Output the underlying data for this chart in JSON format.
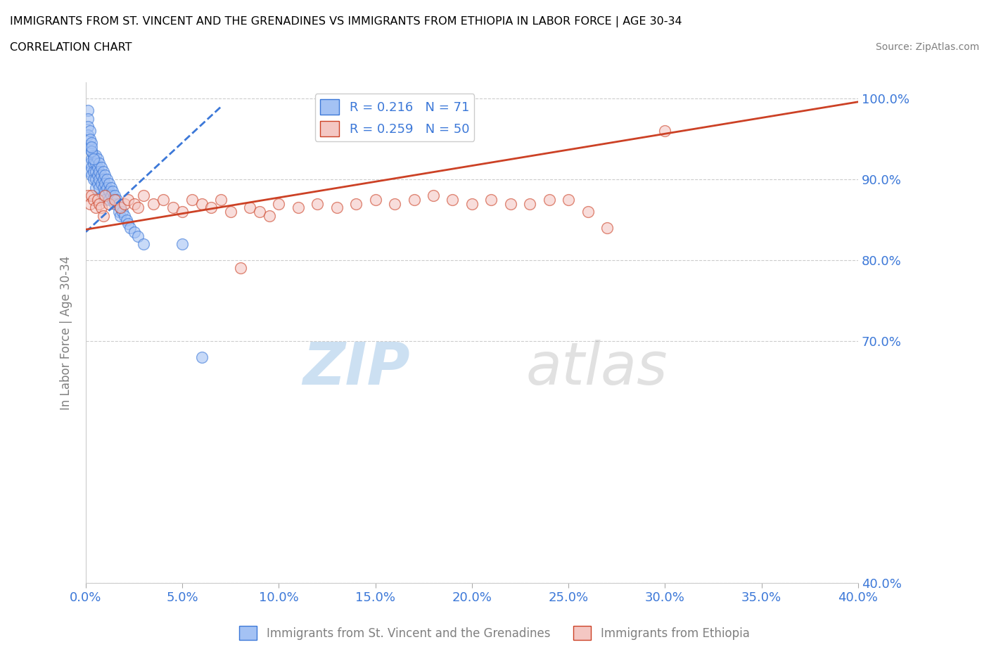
{
  "title": "IMMIGRANTS FROM ST. VINCENT AND THE GRENADINES VS IMMIGRANTS FROM ETHIOPIA IN LABOR FORCE | AGE 30-34",
  "subtitle": "CORRELATION CHART",
  "source": "Source: ZipAtlas.com",
  "ylabel": "In Labor Force | Age 30-34",
  "xlabel": "",
  "legend_label_blue": "Immigrants from St. Vincent and the Grenadines",
  "legend_label_pink": "Immigrants from Ethiopia",
  "R_blue": 0.216,
  "N_blue": 71,
  "R_pink": 0.259,
  "N_pink": 50,
  "blue_color": "#a4c2f4",
  "pink_color": "#f4c7c3",
  "trend_blue_color": "#3c78d8",
  "trend_pink_color": "#cc4125",
  "watermark_color": "#c8d8f0",
  "watermark": "ZIPatlas",
  "xlim": [
    0.0,
    0.4
  ],
  "ylim": [
    0.4,
    1.02
  ],
  "yticks": [
    0.4,
    0.7,
    0.8,
    0.9,
    1.0
  ],
  "xticks": [
    0.0,
    0.05,
    0.1,
    0.15,
    0.2,
    0.25,
    0.3,
    0.35,
    0.4
  ],
  "blue_x": [
    0.001,
    0.001,
    0.002,
    0.002,
    0.002,
    0.003,
    0.003,
    0.003,
    0.003,
    0.004,
    0.004,
    0.004,
    0.004,
    0.005,
    0.005,
    0.005,
    0.005,
    0.005,
    0.006,
    0.006,
    0.006,
    0.006,
    0.007,
    0.007,
    0.007,
    0.007,
    0.008,
    0.008,
    0.008,
    0.009,
    0.009,
    0.009,
    0.009,
    0.01,
    0.01,
    0.01,
    0.01,
    0.011,
    0.011,
    0.012,
    0.012,
    0.012,
    0.013,
    0.013,
    0.014,
    0.014,
    0.015,
    0.015,
    0.016,
    0.017,
    0.017,
    0.018,
    0.018,
    0.019,
    0.02,
    0.021,
    0.022,
    0.023,
    0.025,
    0.027,
    0.03,
    0.001,
    0.001,
    0.002,
    0.002,
    0.05,
    0.003,
    0.003,
    0.06,
    0.003,
    0.004
  ],
  "blue_y": [
    0.985,
    0.975,
    0.94,
    0.92,
    0.91,
    0.935,
    0.925,
    0.915,
    0.905,
    0.93,
    0.92,
    0.91,
    0.9,
    0.93,
    0.92,
    0.91,
    0.9,
    0.89,
    0.925,
    0.915,
    0.905,
    0.895,
    0.92,
    0.91,
    0.9,
    0.89,
    0.915,
    0.905,
    0.895,
    0.91,
    0.9,
    0.89,
    0.88,
    0.905,
    0.895,
    0.885,
    0.875,
    0.9,
    0.89,
    0.895,
    0.885,
    0.875,
    0.89,
    0.88,
    0.885,
    0.875,
    0.88,
    0.87,
    0.875,
    0.87,
    0.86,
    0.865,
    0.855,
    0.86,
    0.855,
    0.85,
    0.845,
    0.84,
    0.835,
    0.83,
    0.82,
    0.965,
    0.955,
    0.96,
    0.95,
    0.82,
    0.945,
    0.935,
    0.68,
    0.94,
    0.925
  ],
  "pink_x": [
    0.001,
    0.002,
    0.003,
    0.004,
    0.005,
    0.006,
    0.007,
    0.008,
    0.009,
    0.01,
    0.012,
    0.015,
    0.018,
    0.02,
    0.022,
    0.025,
    0.027,
    0.03,
    0.035,
    0.04,
    0.045,
    0.05,
    0.055,
    0.06,
    0.065,
    0.07,
    0.075,
    0.08,
    0.085,
    0.09,
    0.095,
    0.1,
    0.11,
    0.12,
    0.13,
    0.14,
    0.15,
    0.16,
    0.17,
    0.18,
    0.19,
    0.2,
    0.21,
    0.22,
    0.23,
    0.24,
    0.25,
    0.26,
    0.27,
    0.3
  ],
  "pink_y": [
    0.88,
    0.87,
    0.88,
    0.875,
    0.865,
    0.875,
    0.87,
    0.865,
    0.855,
    0.88,
    0.87,
    0.875,
    0.865,
    0.87,
    0.875,
    0.87,
    0.865,
    0.88,
    0.87,
    0.875,
    0.865,
    0.86,
    0.875,
    0.87,
    0.865,
    0.875,
    0.86,
    0.79,
    0.865,
    0.86,
    0.855,
    0.87,
    0.865,
    0.87,
    0.865,
    0.87,
    0.875,
    0.87,
    0.875,
    0.88,
    0.875,
    0.87,
    0.875,
    0.87,
    0.87,
    0.875,
    0.875,
    0.86,
    0.84,
    0.96
  ]
}
